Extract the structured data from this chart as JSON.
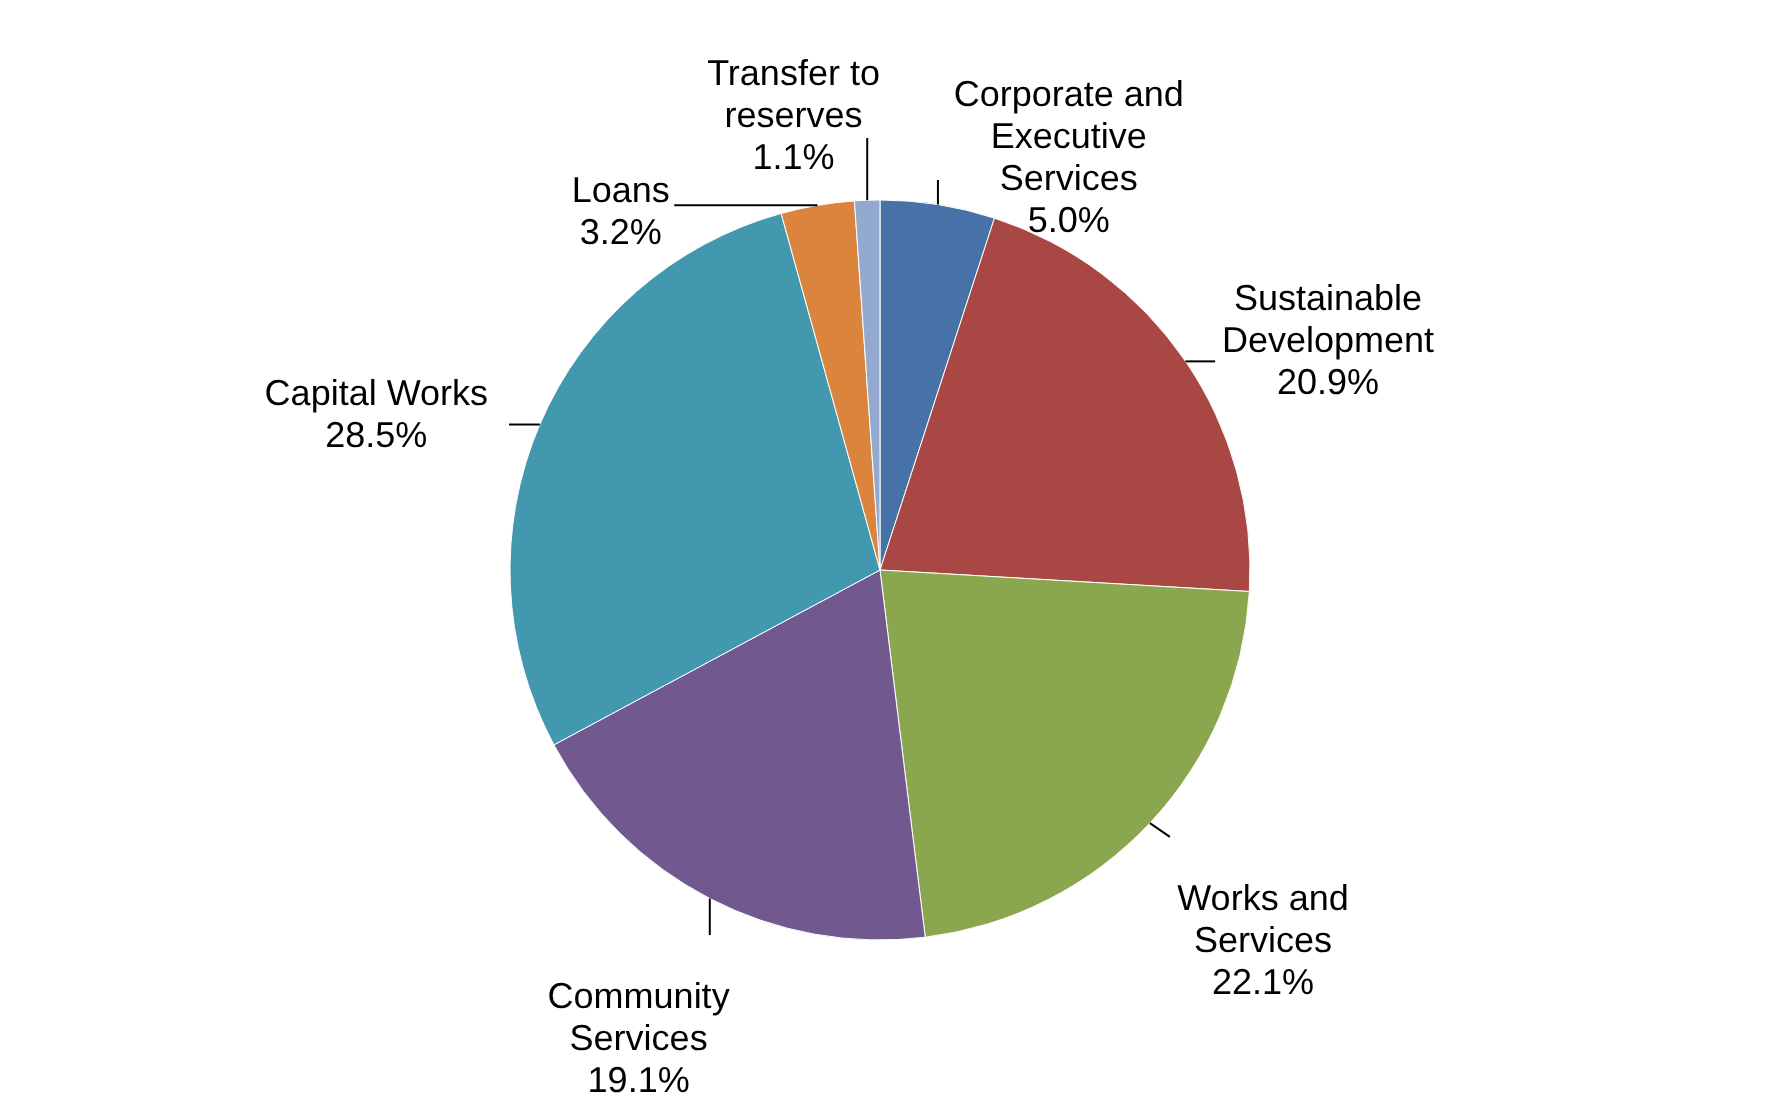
{
  "chart_data": {
    "type": "pie",
    "categories": [
      "Corporate and Executive Services",
      "Sustainable Development",
      "Works and Services",
      "Community Services",
      "Capital Works",
      "Loans",
      "Transfer to reserves"
    ],
    "values": [
      5.0,
      20.9,
      22.1,
      19.1,
      28.5,
      3.2,
      1.1
    ],
    "value_labels": [
      "5.0%",
      "20.9%",
      "22.1%",
      "19.1%",
      "28.5%",
      "3.2%",
      "1.1%"
    ],
    "colors": [
      "#4672a8",
      "#a94745",
      "#8aa64f",
      "#71588f",
      "#4198af",
      "#db843d",
      "#93a9d0"
    ]
  }
}
